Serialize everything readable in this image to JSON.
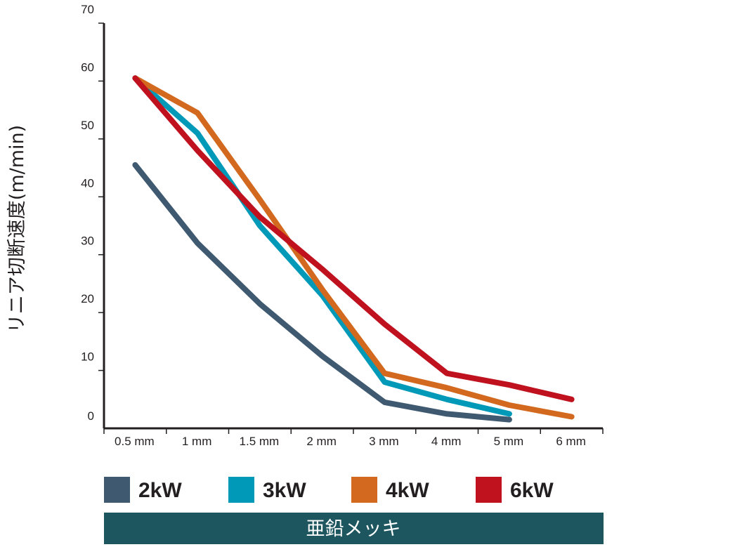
{
  "chart_data": {
    "type": "line",
    "title": "",
    "ylabel": "リニア切断速度(m/min)",
    "xlabel": "",
    "categories": [
      "0.5 mm",
      "1 mm",
      "1.5 mm",
      "2 mm",
      "3 mm",
      "4 mm",
      "5 mm",
      "6 mm"
    ],
    "y_ticks": [
      "70",
      "60",
      "50",
      "40",
      "30",
      "20",
      "10",
      "0"
    ],
    "ylim": [
      0,
      70
    ],
    "grid": false,
    "legend_position": "bottom",
    "series": [
      {
        "name": "2kW",
        "color": "#3f5a70",
        "values": [
          45.5,
          32,
          21.5,
          12.5,
          4.5,
          2.5,
          1.5,
          null
        ]
      },
      {
        "name": "3kW",
        "color": "#0099b8",
        "values": [
          60.5,
          51,
          35,
          23,
          8,
          5,
          2.5,
          null
        ]
      },
      {
        "name": "4kW",
        "color": "#d2691e",
        "values": [
          60.5,
          54.5,
          39.5,
          24,
          9.5,
          7,
          4,
          2
        ]
      },
      {
        "name": "6kW",
        "color": "#c0111f",
        "values": [
          60.5,
          48,
          36.5,
          27.5,
          18,
          9.5,
          7.5,
          5
        ]
      }
    ],
    "footer_label": "亜鉛メッキ",
    "footer_color": "#1e5660"
  }
}
